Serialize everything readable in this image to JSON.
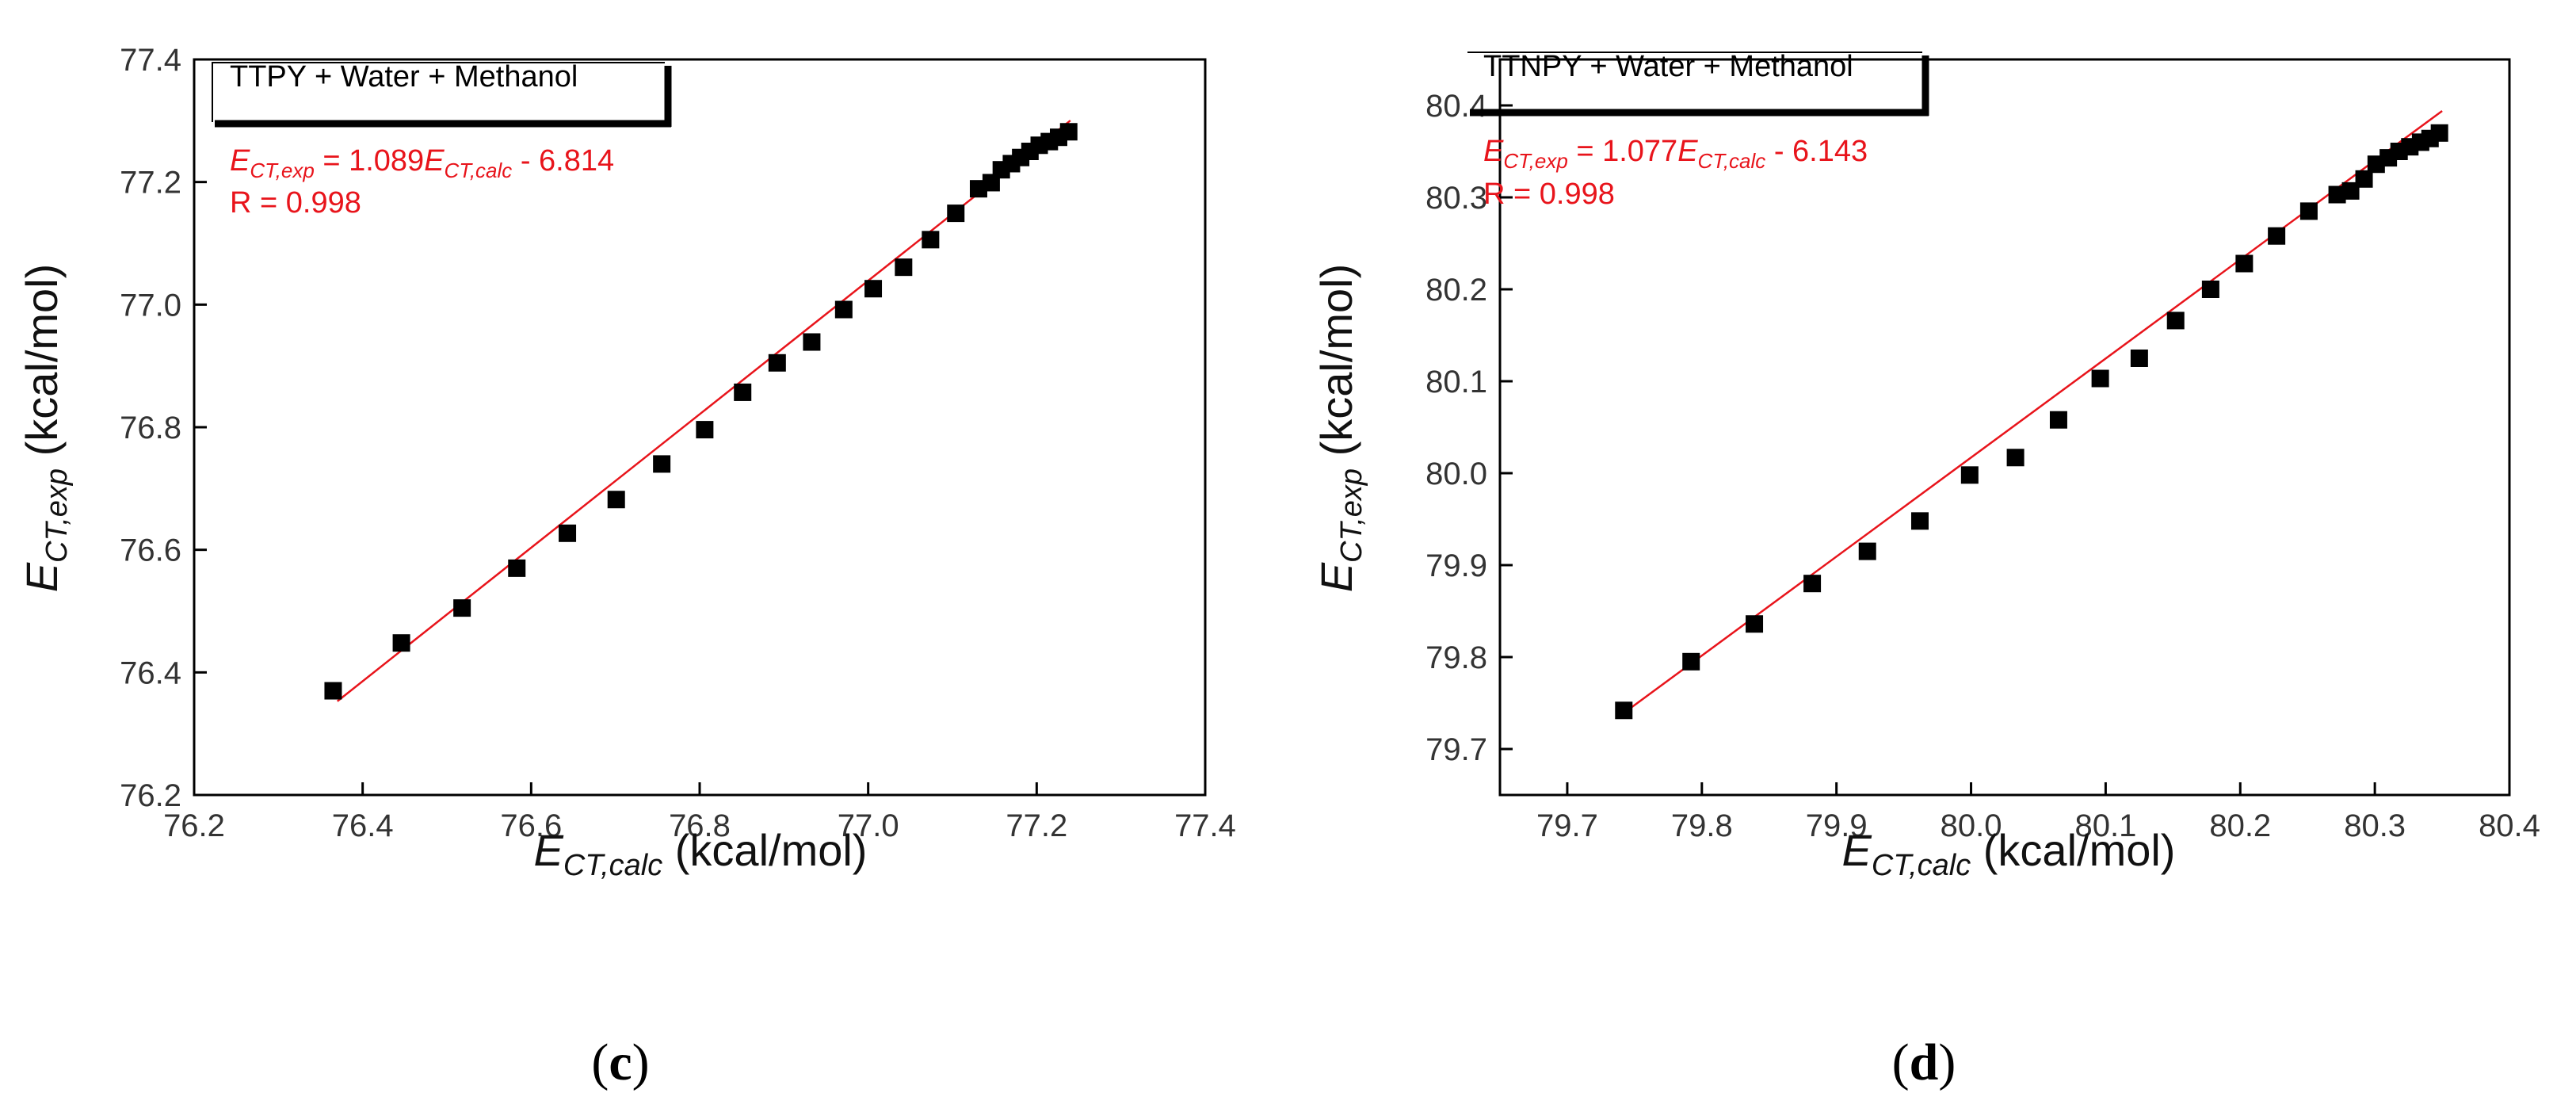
{
  "chart_data": [
    {
      "type": "scatter",
      "panel": "c",
      "panel_label_prefix": "(",
      "panel_label_suffix": ")",
      "legend_title": "TTPY + Water + Methanol",
      "equation": {
        "lhs_base": "E",
        "lhs_sub": "CT,exp",
        "eq_mid": " = 1.089",
        "rhs_base": "E",
        "rhs_sub": "CT,calc",
        "eq_tail": " - 6.814"
      },
      "r_text": "R = 0.998",
      "xlabel": {
        "base": "E",
        "sub": "CT,calc",
        "unit": " (kcal/mol)"
      },
      "ylabel": {
        "base": "E",
        "sub": "CT,exp",
        "unit": " (kcal/mol)"
      },
      "xlim": [
        76.2,
        77.4
      ],
      "ylim": [
        76.2,
        77.4
      ],
      "xticks": [
        "76.2",
        "76.4",
        "76.6",
        "76.8",
        "77.0",
        "77.2",
        "77.4"
      ],
      "yticks": [
        "76.2",
        "76.4",
        "76.6",
        "76.8",
        "77.0",
        "77.2",
        "77.4"
      ],
      "fit": {
        "slope": 1.089,
        "intercept": -6.814,
        "x_range": [
          76.37,
          77.24
        ],
        "color": "#e8141b"
      },
      "points": [
        [
          76.365,
          76.37
        ],
        [
          76.446,
          76.448
        ],
        [
          76.518,
          76.505
        ],
        [
          76.583,
          76.57
        ],
        [
          76.643,
          76.627
        ],
        [
          76.701,
          76.682
        ],
        [
          76.755,
          76.74
        ],
        [
          76.806,
          76.796
        ],
        [
          76.851,
          76.857
        ],
        [
          76.892,
          76.905
        ],
        [
          76.933,
          76.939
        ],
        [
          76.971,
          76.992
        ],
        [
          77.006,
          77.026
        ],
        [
          77.042,
          77.061
        ],
        [
          77.074,
          77.106
        ],
        [
          77.104,
          77.149
        ],
        [
          77.131,
          77.189
        ],
        [
          77.146,
          77.199
        ],
        [
          77.158,
          77.22
        ],
        [
          77.17,
          77.23
        ],
        [
          77.181,
          77.24
        ],
        [
          77.192,
          77.25
        ],
        [
          77.203,
          77.26
        ],
        [
          77.215,
          77.266
        ],
        [
          77.226,
          77.273
        ],
        [
          77.238,
          77.282
        ]
      ]
    },
    {
      "type": "scatter",
      "panel": "d",
      "panel_label_prefix": "(",
      "panel_label_suffix": ")",
      "legend_title": "TTNPY + Water + Methanol",
      "equation": {
        "lhs_base": "E",
        "lhs_sub": "CT,exp",
        "eq_mid": " = 1.077",
        "rhs_base": "E",
        "rhs_sub": "CT,calc",
        "eq_tail": " - 6.143"
      },
      "r_text": "R = 0.998",
      "xlabel": {
        "base": "E",
        "sub": "CT,calc",
        "unit": " (kcal/mol)"
      },
      "ylabel": {
        "base": "E",
        "sub": "CT,exp",
        "unit": " (kcal/mol)"
      },
      "xlim": [
        79.65,
        80.4
      ],
      "ylim": [
        79.65,
        80.45
      ],
      "xticks": [
        "79.7",
        "79.8",
        "79.9",
        "80.0",
        "80.1",
        "80.2",
        "80.3",
        "80.4"
      ],
      "yticks": [
        "79.7",
        "79.8",
        "79.9",
        "80.0",
        "80.1",
        "80.2",
        "80.3",
        "80.4"
      ],
      "fit": {
        "slope": 1.077,
        "intercept": -6.143,
        "x_range": [
          79.74,
          80.35
        ],
        "color": "#e8141b"
      },
      "points": [
        [
          79.742,
          79.742
        ],
        [
          79.792,
          79.795
        ],
        [
          79.839,
          79.836
        ],
        [
          79.882,
          79.88
        ],
        [
          79.923,
          79.915
        ],
        [
          79.962,
          79.948
        ],
        [
          79.999,
          79.998
        ],
        [
          80.033,
          80.017
        ],
        [
          80.065,
          80.058
        ],
        [
          80.096,
          80.103
        ],
        [
          80.125,
          80.125
        ],
        [
          80.152,
          80.166
        ],
        [
          80.178,
          80.2
        ],
        [
          80.203,
          80.228
        ],
        [
          80.227,
          80.258
        ],
        [
          80.251,
          80.285
        ],
        [
          80.272,
          80.303
        ],
        [
          80.282,
          80.307
        ],
        [
          80.292,
          80.32
        ],
        [
          80.301,
          80.336
        ],
        [
          80.31,
          80.343
        ],
        [
          80.318,
          80.35
        ],
        [
          80.326,
          80.355
        ],
        [
          80.334,
          80.36
        ],
        [
          80.341,
          80.364
        ],
        [
          80.348,
          80.37
        ]
      ]
    }
  ]
}
